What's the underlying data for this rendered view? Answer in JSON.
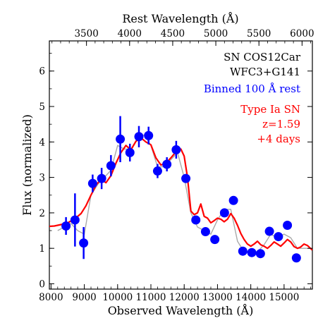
{
  "chart_data": {
    "type": "line",
    "xlabel": "Observed Wavelength (Å)",
    "ylabel": "Flux (normalized)",
    "top_xlabel": "Rest Wavelength (Å)",
    "xlim": [
      7950,
      15850
    ],
    "ylim": [
      -0.15,
      6.85
    ],
    "x_ticks": [
      8000,
      9000,
      10000,
      11000,
      12000,
      13000,
      14000,
      15000
    ],
    "y_ticks": [
      0,
      1,
      2,
      3,
      4,
      5,
      6
    ],
    "top_ticks": [
      3500,
      4000,
      4500,
      5000,
      5500,
      6000
    ],
    "redshift": 1.59,
    "grid": false,
    "annotations": [
      {
        "text": "SN COS12Car",
        "color": "#000000"
      },
      {
        "text": "WFC3+G141",
        "color": "#000000"
      },
      {
        "text": "Binned 100 Å rest",
        "color": "#0000ff"
      },
      {
        "text": "Type Ia SN",
        "color": "#ff0000"
      },
      {
        "text": "z=1.59",
        "color": "#ff0000"
      },
      {
        "text": "+4 days",
        "color": "#ff0000"
      }
    ],
    "series": [
      {
        "style": "unbinned-spectrum",
        "color": "#9a9a9a",
        "x": [
          8200,
          8400,
          8600,
          8800,
          9000,
          9200,
          9400,
          9600,
          9800,
          10000,
          10200,
          10400,
          10600,
          10800,
          11000,
          11200,
          11400,
          11600,
          11800,
          12000,
          12200,
          12400,
          12600,
          12800,
          13000,
          13200,
          13400,
          13600,
          13800,
          14000,
          14200,
          14400,
          14600,
          14800,
          15000,
          15200,
          15400,
          15600,
          15800
        ],
        "y": [
          1.5,
          1.6,
          1.7,
          1.5,
          1.4,
          2.5,
          2.8,
          3.0,
          3.2,
          3.9,
          3.8,
          3.8,
          4.1,
          4.2,
          3.9,
          3.3,
          3.3,
          3.5,
          3.7,
          3.0,
          2.0,
          1.6,
          1.5,
          1.4,
          1.8,
          2.1,
          2.1,
          1.2,
          0.9,
          0.9,
          0.9,
          1.1,
          1.4,
          1.3,
          1.4,
          1.3,
          1.0,
          1.0,
          1.0
        ]
      },
      {
        "name": "Binned 100 Å rest",
        "style": "binned-points",
        "color": "#0000ff",
        "x": [
          8450,
          8720,
          8980,
          9250,
          9520,
          9800,
          10080,
          10370,
          10640,
          10930,
          11200,
          11480,
          11760,
          12050,
          12350,
          12640,
          12920,
          13210,
          13480,
          13760,
          14030,
          14290,
          14560,
          14830,
          15100,
          15370
        ],
        "y": [
          1.63,
          1.8,
          1.15,
          2.83,
          2.97,
          3.33,
          4.08,
          3.7,
          4.15,
          4.18,
          3.18,
          3.37,
          3.78,
          2.97,
          1.8,
          1.47,
          1.25,
          2.0,
          2.35,
          0.92,
          0.88,
          0.85,
          1.48,
          1.33,
          1.65,
          0.73
        ],
        "err": [
          0.25,
          0.75,
          0.45,
          0.25,
          0.3,
          0.3,
          0.65,
          0.25,
          0.3,
          0.25,
          0.2,
          0.2,
          0.25,
          0.1,
          0.12,
          0.1,
          0.1,
          0.12,
          0.12,
          0.1,
          0.1,
          0.1,
          0.1,
          0.1,
          0.1,
          0.1
        ]
      },
      {
        "name": "Type Ia SN",
        "style": "template",
        "color": "#ff0000",
        "x": [
          7950,
          8100,
          8300,
          8500,
          8700,
          8900,
          9050,
          9200,
          9350,
          9500,
          9650,
          9800,
          9950,
          10100,
          10250,
          10400,
          10550,
          10700,
          10850,
          11000,
          11150,
          11300,
          11450,
          11600,
          11750,
          11900,
          12000,
          12100,
          12200,
          12300,
          12400,
          12500,
          12600,
          12700,
          12800,
          12900,
          13000,
          13100,
          13200,
          13300,
          13400,
          13500,
          13600,
          13700,
          13800,
          13900,
          14000,
          14100,
          14200,
          14300,
          14400,
          14500,
          14600,
          14700,
          14800,
          14900,
          15000,
          15100,
          15200,
          15300,
          15400,
          15500,
          15600,
          15700,
          15850
        ],
        "y": [
          1.62,
          1.63,
          1.67,
          1.72,
          1.82,
          1.98,
          2.2,
          2.5,
          2.78,
          2.95,
          2.85,
          3.05,
          3.4,
          3.7,
          3.9,
          3.78,
          4.02,
          4.12,
          4.0,
          3.92,
          3.55,
          3.35,
          3.4,
          3.55,
          3.72,
          3.8,
          3.6,
          3.0,
          2.05,
          1.95,
          2.0,
          2.25,
          1.9,
          1.85,
          1.72,
          1.78,
          1.85,
          1.82,
          1.75,
          1.82,
          1.98,
          1.85,
          1.65,
          1.42,
          1.25,
          1.12,
          1.06,
          1.12,
          1.2,
          1.1,
          1.06,
          1.0,
          1.08,
          1.18,
          1.12,
          1.06,
          1.15,
          1.25,
          1.18,
          1.05,
          1.0,
          1.04,
          1.12,
          1.08,
          0.95
        ]
      }
    ]
  }
}
